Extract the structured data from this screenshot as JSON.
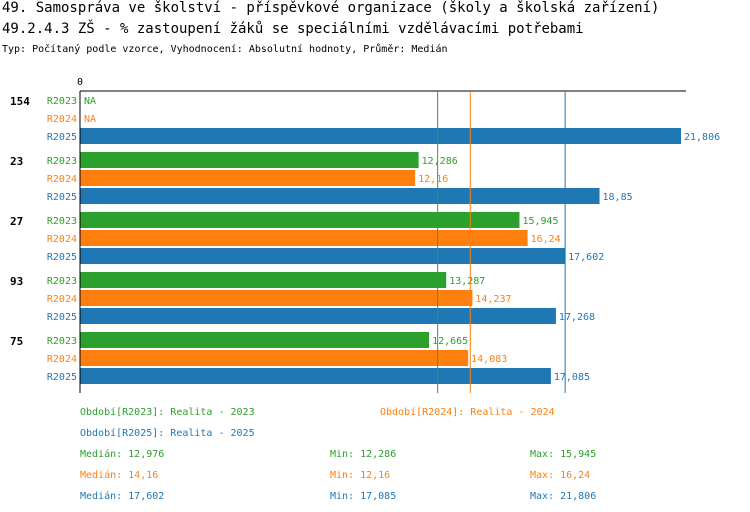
{
  "title": "49. Samospráva ve školství - příspěvkové organizace (školy a školská zařízení)",
  "subtitle_main": "49.2.4.3 ZŠ - % zastoupení žáků se speciálními vzdělávacími potřebami",
  "info": "Typ: Počítaný podle vzorce, Vyhodnocení: Absolutní hodnoty, Průměr: Medián",
  "colors": {
    "R2023": "#2ca02c",
    "R2024": "#ff7f0e",
    "R2025": "#1f77b4"
  },
  "chart_data": {
    "type": "bar",
    "orientation": "horizontal",
    "axis_zero_label": "0",
    "xlim": [
      0,
      21.806
    ],
    "categories": [
      "154",
      "23",
      "27",
      "93",
      "75"
    ],
    "series": [
      {
        "name": "R2023",
        "values": [
          null,
          12.286,
          15.945,
          13.287,
          12.665
        ],
        "labels": [
          "NA",
          "12,286",
          "15,945",
          "13,287",
          "12,665"
        ]
      },
      {
        "name": "R2024",
        "values": [
          null,
          12.16,
          16.24,
          14.237,
          14.083
        ],
        "labels": [
          "NA",
          "12,16",
          "16,24",
          "14,237",
          "14,083"
        ]
      },
      {
        "name": "R2025",
        "values": [
          21.806,
          18.85,
          17.602,
          17.268,
          17.085
        ],
        "labels": [
          "21,806",
          "18,85",
          "17,602",
          "17,268",
          "17,085"
        ]
      }
    ],
    "median_lines": [
      {
        "series": "R2023",
        "value": 12.976
      },
      {
        "series": "R2024",
        "value": 14.16
      },
      {
        "series": "R2025",
        "value": 17.602
      }
    ]
  },
  "legend": {
    "period_2023": "Období[R2023]: Realita - 2023",
    "period_2024": "Období[R2024]: Realita - 2024",
    "period_2025": "Období[R2025]: Realita - 2025",
    "stats": [
      {
        "series": "R2023",
        "median": "Medián: 12,976",
        "min": "Min: 12,286",
        "max": "Max: 15,945"
      },
      {
        "series": "R2024",
        "median": "Medián: 14,16",
        "min": "Min: 12,16",
        "max": "Max: 16,24"
      },
      {
        "series": "R2025",
        "median": "Medián: 17,602",
        "min": "Min: 17,085",
        "max": "Max: 21,806"
      }
    ]
  }
}
